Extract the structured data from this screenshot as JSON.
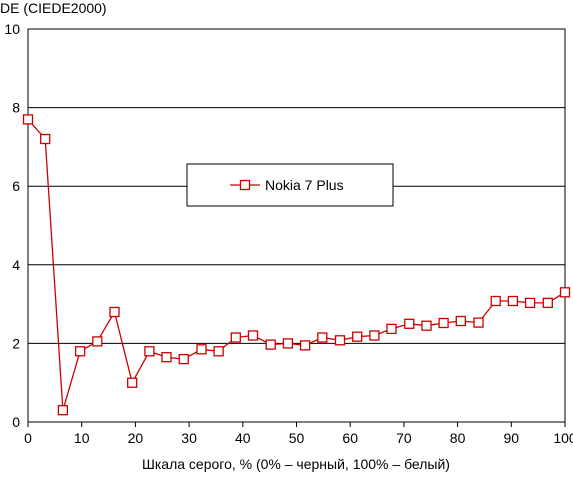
{
  "chart_data": {
    "type": "line",
    "title": "",
    "ylabel": "DE (CIEDE2000)",
    "xlabel": "Шкала серого, % (0% – черный, 100% – белый)",
    "xlim": [
      0,
      100
    ],
    "ylim": [
      0,
      10
    ],
    "x_ticks": [
      "0",
      "10",
      "20",
      "30",
      "40",
      "50",
      "60",
      "70",
      "80",
      "90",
      "100"
    ],
    "y_ticks": [
      "0",
      "2",
      "4",
      "6",
      "8",
      "10"
    ],
    "grid": "horizontal",
    "legend_position": "center",
    "series": [
      {
        "name": "Nokia 7 Plus",
        "color": "#cc0000",
        "marker": "square",
        "x": [
          0,
          3.2,
          6.5,
          9.7,
          12.9,
          16.1,
          19.4,
          22.6,
          25.8,
          29.0,
          32.3,
          35.5,
          38.7,
          41.9,
          45.2,
          48.4,
          51.6,
          54.8,
          58.1,
          61.3,
          64.5,
          67.7,
          71.0,
          74.2,
          77.4,
          80.6,
          83.9,
          87.1,
          90.3,
          93.5,
          96.8,
          100
        ],
        "y": [
          7.7,
          7.2,
          0.3,
          1.8,
          2.05,
          2.8,
          1.0,
          1.8,
          1.65,
          1.6,
          1.85,
          1.8,
          2.15,
          2.2,
          1.97,
          2.0,
          1.95,
          2.15,
          2.08,
          2.17,
          2.2,
          2.37,
          2.5,
          2.45,
          2.52,
          2.57,
          2.53,
          3.08,
          3.08,
          3.03,
          3.03,
          3.3
        ]
      }
    ]
  }
}
